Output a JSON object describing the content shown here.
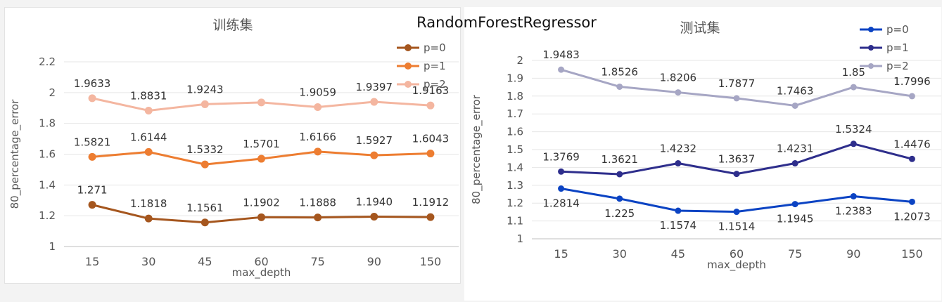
{
  "suptitle": "RandomForestRegressor",
  "chart_data": [
    {
      "type": "line",
      "title": "训练集",
      "xlabel": "max_depth",
      "ylabel": "80_percentage_error",
      "categories": [
        "15",
        "30",
        "45",
        "60",
        "75",
        "90",
        "150"
      ],
      "ylim": [
        1,
        2.2
      ],
      "yticks": [
        "1",
        "1.2",
        "1.4",
        "1.6",
        "1.8",
        "2",
        "2.2"
      ],
      "grid": true,
      "legend_position": "top-right",
      "series": [
        {
          "name": "p=0",
          "color": "#a5561e",
          "values": [
            1.271,
            1.1818,
            1.1561,
            1.1902,
            1.1888,
            1.194,
            1.1912
          ],
          "labels": [
            "1.271",
            "1.1818",
            "1.1561",
            "1.1902",
            "1.1888",
            "1.1940",
            "1.1912"
          ]
        },
        {
          "name": "p=1",
          "color": "#ed7d31",
          "values": [
            1.5821,
            1.6144,
            1.5332,
            1.5701,
            1.6166,
            1.5927,
            1.6043
          ],
          "labels": [
            "1.5821",
            "1.6144",
            "1.5332",
            "1.5701",
            "1.6166",
            "1.5927",
            "1.6043"
          ]
        },
        {
          "name": "p=2",
          "color": "#f4b6a0",
          "values": [
            1.9633,
            1.8831,
            1.9243,
            1.9362,
            1.9059,
            1.9397,
            1.9163
          ],
          "labels": [
            "1.9633",
            "1.8831",
            "1.9243",
            "",
            "1.9059",
            "1.9397",
            "1.9163"
          ]
        }
      ]
    },
    {
      "type": "line",
      "title": "测试集",
      "xlabel": "max_depth",
      "ylabel": "80_percentage_error",
      "categories": [
        "15",
        "30",
        "45",
        "60",
        "75",
        "90",
        "150"
      ],
      "ylim": [
        1,
        2
      ],
      "yticks": [
        "1",
        "1.1",
        "1.2",
        "1.3",
        "1.4",
        "1.5",
        "1.6",
        "1.7",
        "1.8",
        "1.9",
        "2"
      ],
      "grid": true,
      "legend_position": "top-right",
      "series": [
        {
          "name": "p=0",
          "color": "#0b43c3",
          "values": [
            1.2814,
            1.225,
            1.1574,
            1.1514,
            1.1945,
            1.2383,
            1.2073
          ],
          "labels": [
            "1.2814",
            "1.225",
            "1.1574",
            "1.1514",
            "1.1945",
            "1.2383",
            "1.2073"
          ]
        },
        {
          "name": "p=1",
          "color": "#2e2e8c",
          "values": [
            1.3769,
            1.3621,
            1.4232,
            1.3637,
            1.4231,
            1.5324,
            1.4476
          ],
          "labels": [
            "1.3769",
            "1.3621",
            "1.4232",
            "1.3637",
            "1.4231",
            "1.5324",
            "1.4476"
          ]
        },
        {
          "name": "p=2",
          "color": "#a6a6c4",
          "values": [
            1.9483,
            1.8526,
            1.8206,
            1.7877,
            1.7463,
            1.85,
            1.7996
          ],
          "labels": [
            "1.9483",
            "1.8526",
            "1.8206",
            "1.7877",
            "1.7463",
            "1.85",
            "1.7996"
          ]
        }
      ]
    }
  ]
}
